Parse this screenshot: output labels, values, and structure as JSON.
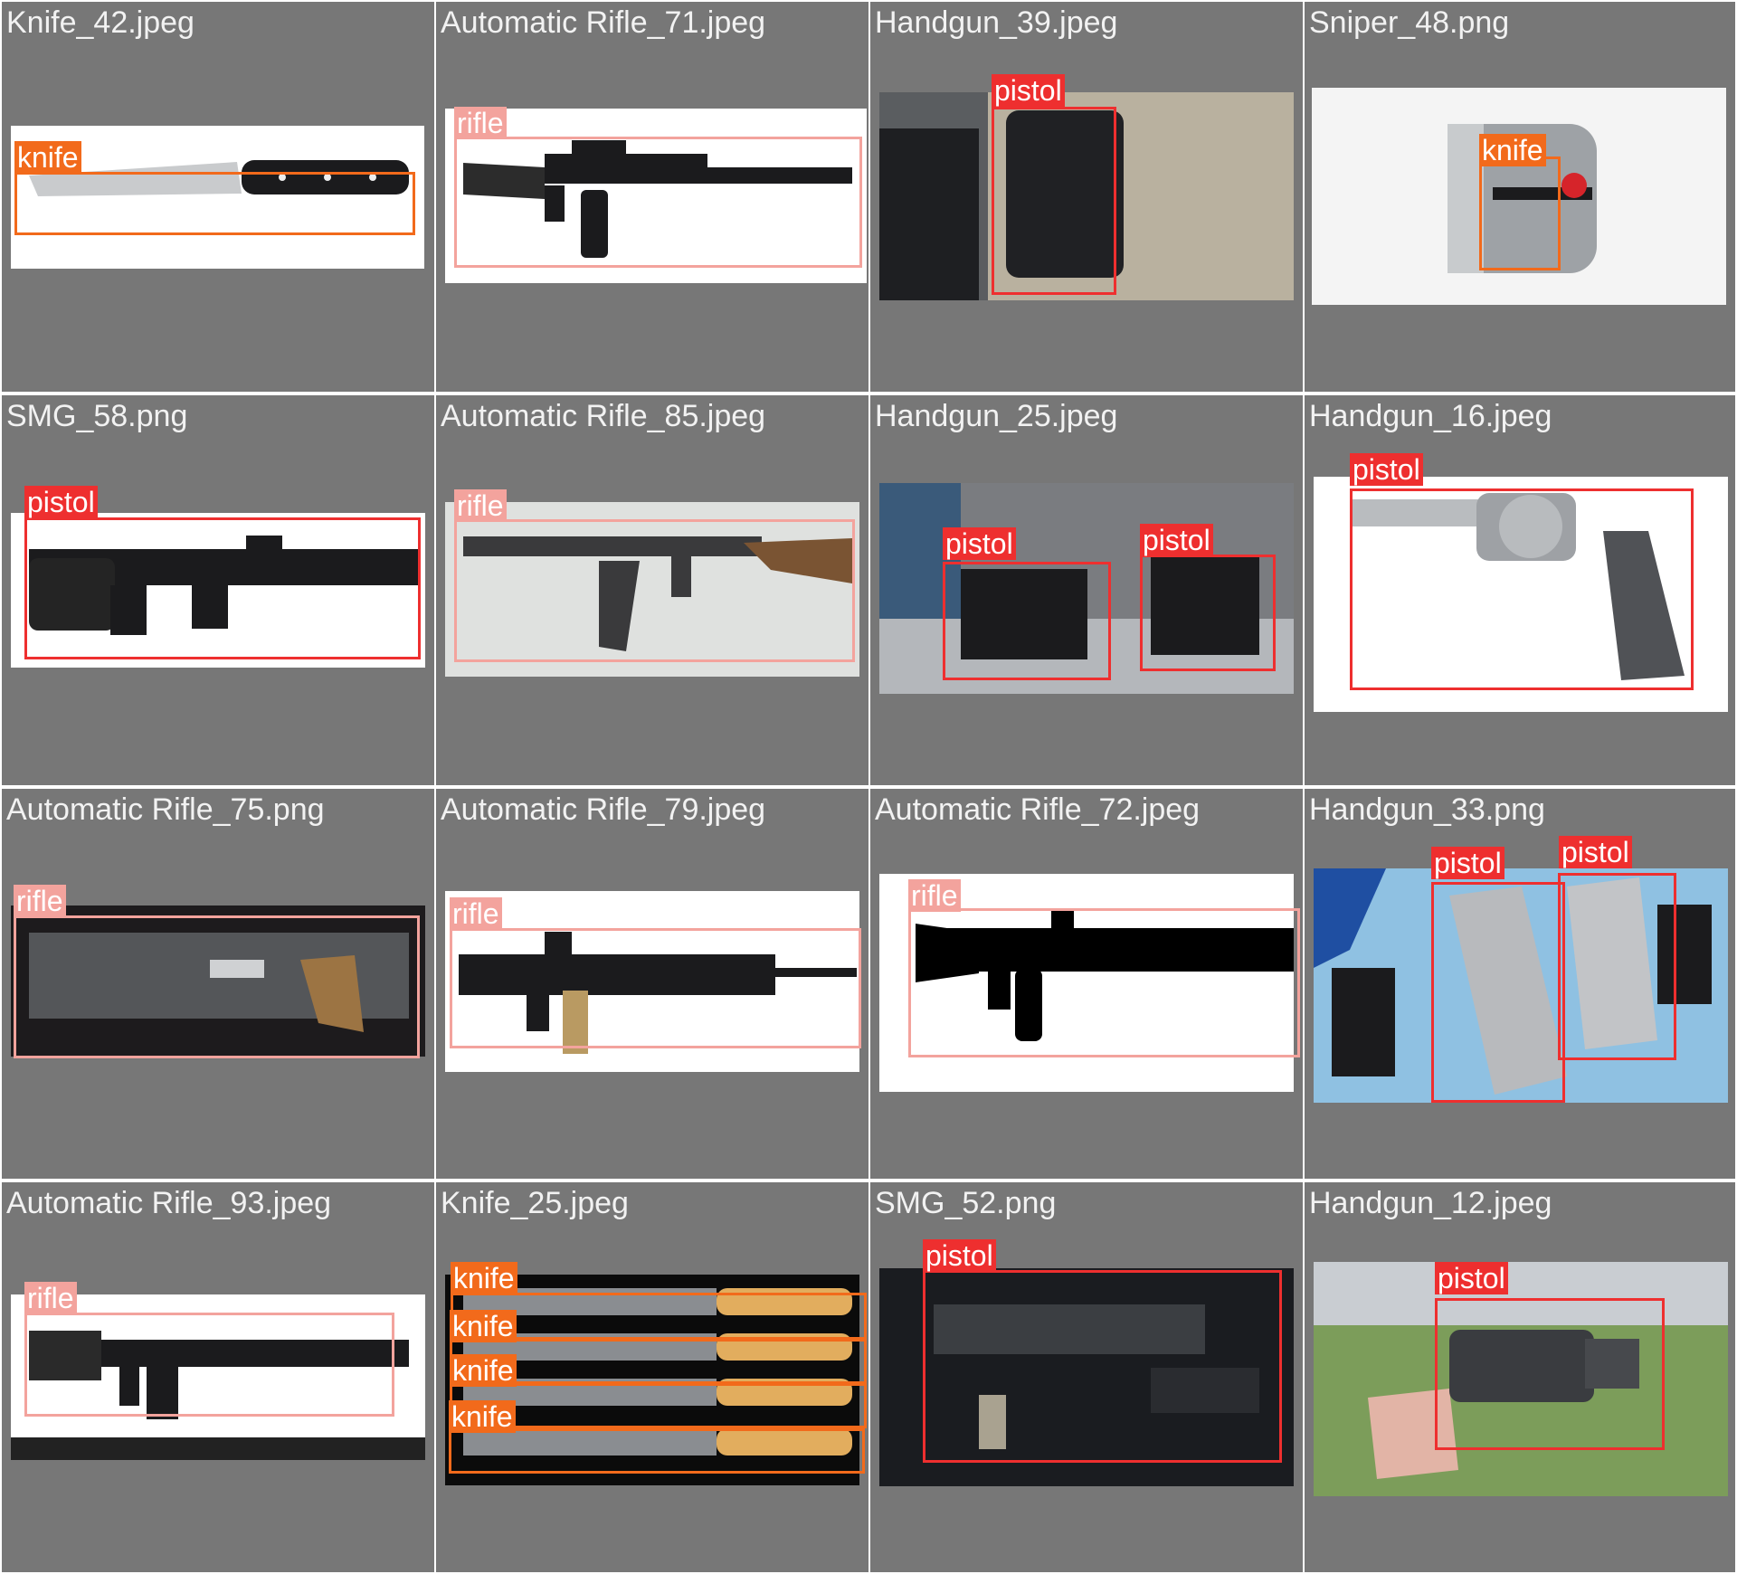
{
  "colors": {
    "background": "#ffffff",
    "tile": "#777777",
    "title_text": "#f2f2f2",
    "knife": "#f26a1b",
    "rifle": "#f3a39d",
    "pistol": "#ee2f2f"
  },
  "tiles": [
    {
      "filename": "Knife_42.jpeg",
      "detections": [
        {
          "label": "knife"
        }
      ]
    },
    {
      "filename": "Automatic Rifle_71.jpeg",
      "detections": [
        {
          "label": "rifle"
        }
      ]
    },
    {
      "filename": "Handgun_39.jpeg",
      "detections": [
        {
          "label": "pistol"
        }
      ]
    },
    {
      "filename": "Sniper_48.png",
      "detections": [
        {
          "label": "knife"
        }
      ]
    },
    {
      "filename": "SMG_58.png",
      "detections": [
        {
          "label": "pistol"
        }
      ]
    },
    {
      "filename": "Automatic Rifle_85.jpeg",
      "detections": [
        {
          "label": "rifle"
        }
      ]
    },
    {
      "filename": "Handgun_25.jpeg",
      "detections": [
        {
          "label": "pistol"
        },
        {
          "label": "pistol"
        }
      ]
    },
    {
      "filename": "Handgun_16.jpeg",
      "detections": [
        {
          "label": "pistol"
        }
      ]
    },
    {
      "filename": "Automatic Rifle_75.png",
      "detections": [
        {
          "label": "rifle"
        }
      ]
    },
    {
      "filename": "Automatic Rifle_79.jpeg",
      "detections": [
        {
          "label": "rifle"
        }
      ]
    },
    {
      "filename": "Automatic Rifle_72.jpeg",
      "detections": [
        {
          "label": "rifle"
        }
      ]
    },
    {
      "filename": "Handgun_33.png",
      "detections": [
        {
          "label": "pistol"
        },
        {
          "label": "pistol"
        }
      ]
    },
    {
      "filename": "Automatic Rifle_93.jpeg",
      "detections": [
        {
          "label": "rifle"
        }
      ]
    },
    {
      "filename": "Knife_25.jpeg",
      "detections": [
        {
          "label": "knife"
        },
        {
          "label": "knife"
        },
        {
          "label": "knife"
        },
        {
          "label": "knife"
        }
      ]
    },
    {
      "filename": "SMG_52.png",
      "detections": [
        {
          "label": "pistol"
        }
      ]
    },
    {
      "filename": "Handgun_12.jpeg",
      "detections": [
        {
          "label": "pistol"
        }
      ]
    }
  ]
}
